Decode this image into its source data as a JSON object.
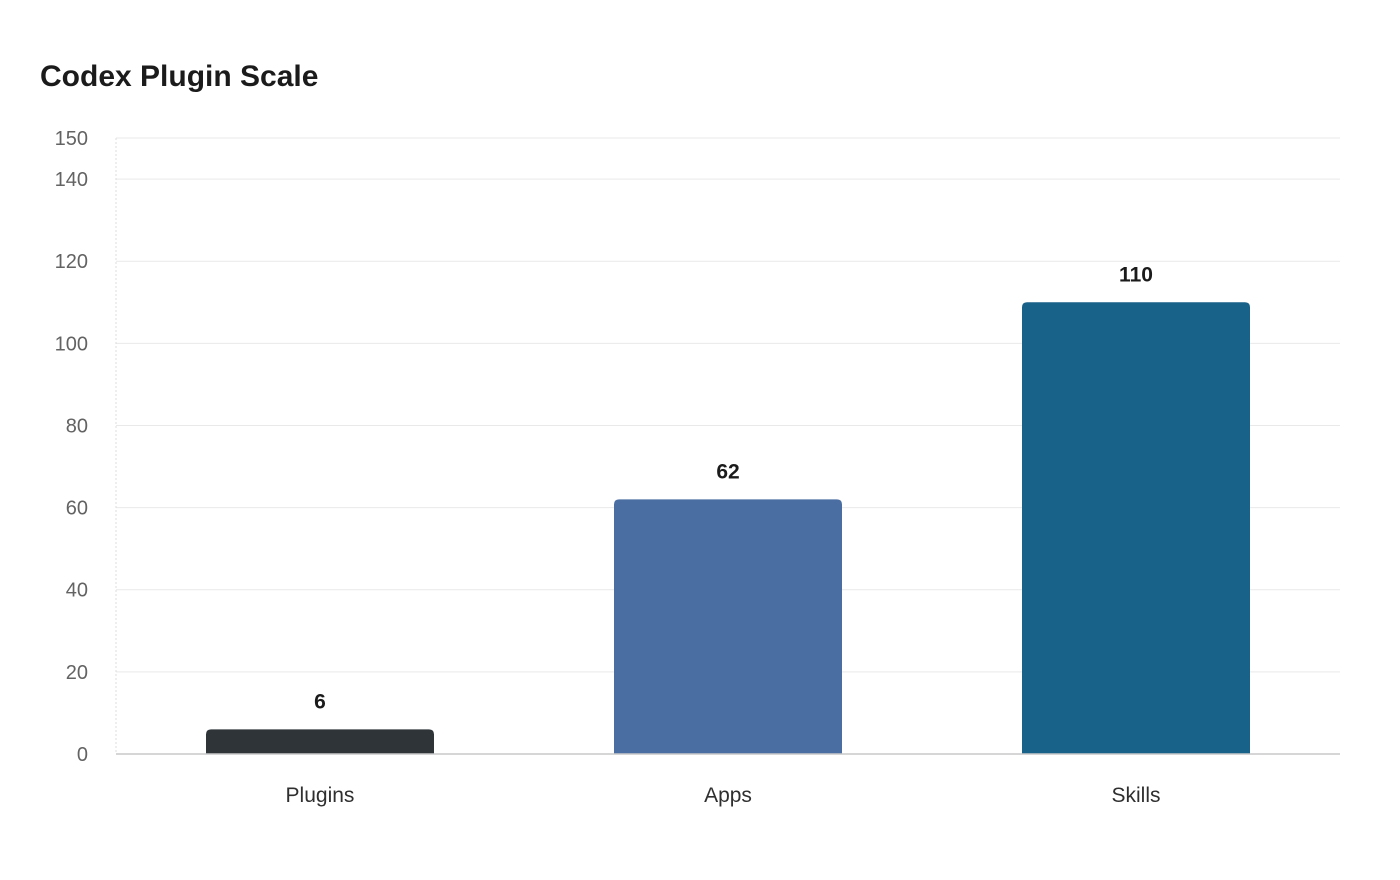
{
  "chart_data": {
    "type": "bar",
    "title": "Codex Plugin Scale",
    "categories": [
      "Plugins",
      "Apps",
      "Skills"
    ],
    "values": [
      6,
      62,
      110
    ],
    "colors": [
      "#2e3438",
      "#4b6ea2",
      "#186189"
    ],
    "yticks": [
      0,
      20,
      40,
      60,
      80,
      100,
      120,
      140,
      150
    ],
    "ylim": [
      0,
      150
    ],
    "xlabel": "",
    "ylabel": "",
    "grid": true,
    "legend": "none"
  }
}
